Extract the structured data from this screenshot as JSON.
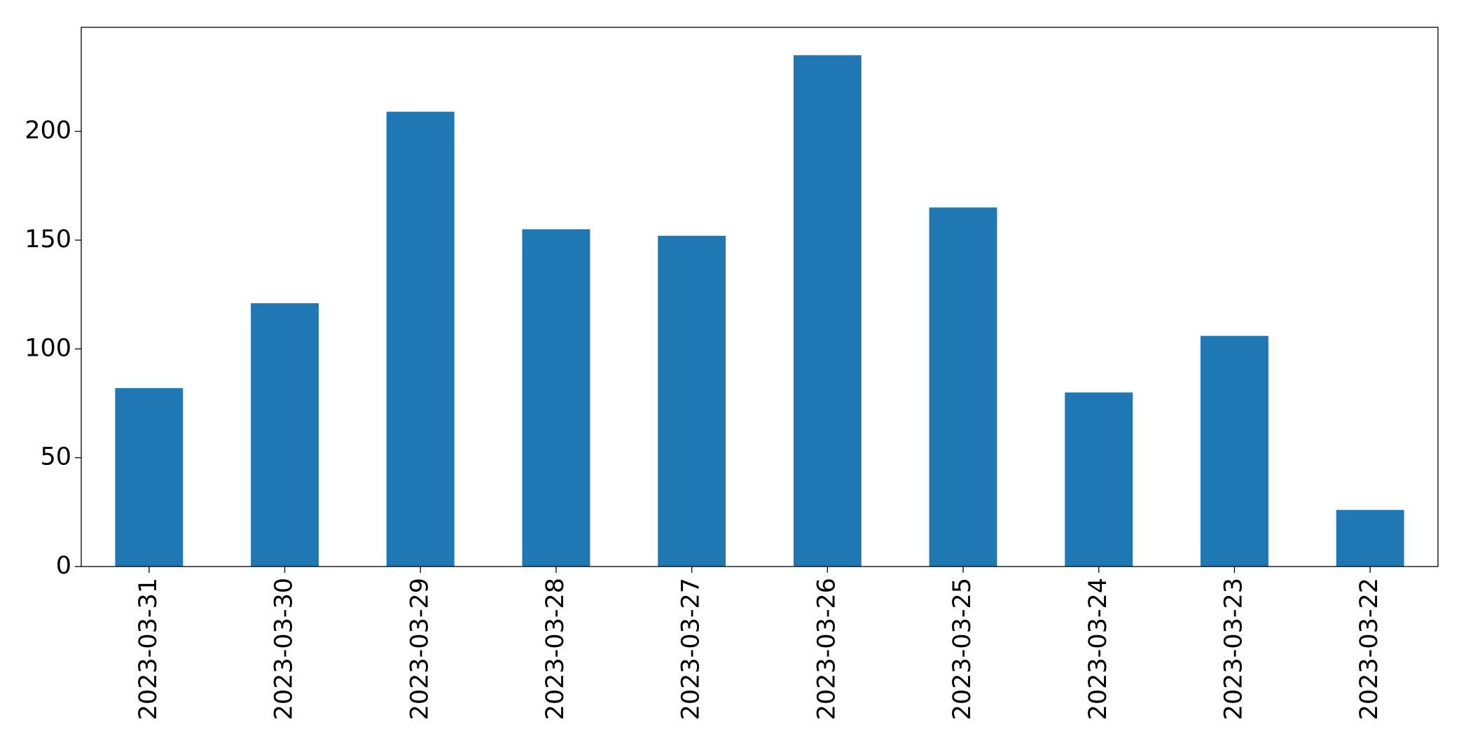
{
  "chart_data": {
    "type": "bar",
    "categories": [
      "2023-03-31",
      "2023-03-30",
      "2023-03-29",
      "2023-03-28",
      "2023-03-27",
      "2023-03-26",
      "2023-03-25",
      "2023-03-24",
      "2023-03-23",
      "2023-03-22"
    ],
    "values": [
      82,
      121,
      209,
      155,
      152,
      235,
      165,
      80,
      106,
      26
    ],
    "color": "#1f77b4",
    "ylim": [
      0,
      247.8
    ],
    "yticks": [
      0,
      50,
      100,
      150,
      200
    ],
    "grid": false
  }
}
